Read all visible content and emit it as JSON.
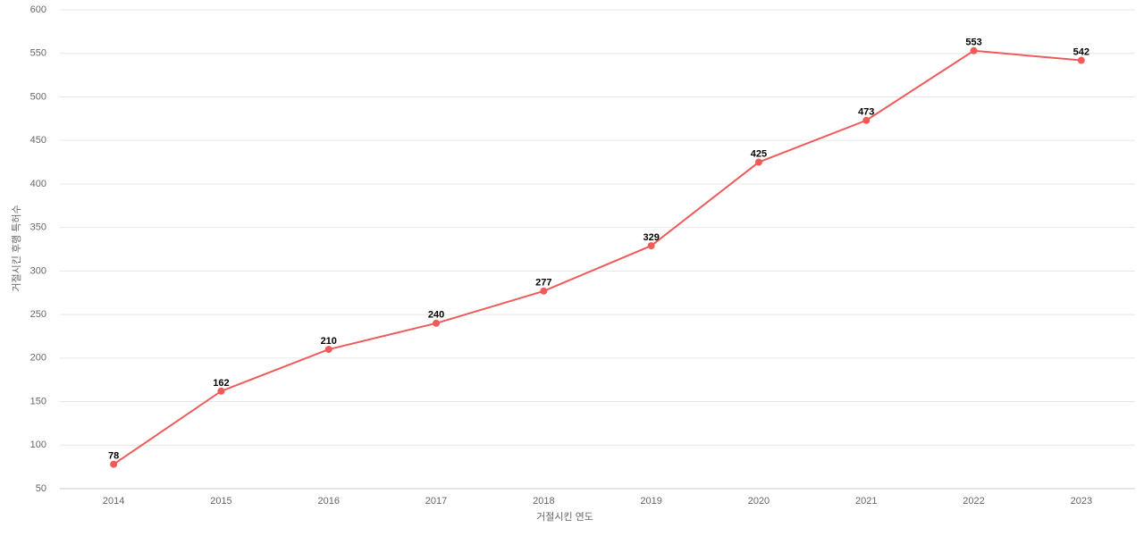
{
  "chart_data": {
    "type": "line",
    "x_label": "거절시킨 연도",
    "y_label": "거절시킨 후행 특허수",
    "categories": [
      "2014",
      "2015",
      "2016",
      "2017",
      "2018",
      "2019",
      "2020",
      "2021",
      "2022",
      "2023"
    ],
    "series": [
      {
        "color": "#ef5a5a",
        "values": [
          78,
          162,
          210,
          240,
          277,
          329,
          425,
          473,
          553,
          542
        ]
      }
    ],
    "ylim": [
      50,
      600
    ],
    "yticks": [
      50,
      100,
      150,
      200,
      250,
      300,
      350,
      400,
      450,
      500,
      550,
      600
    ],
    "grid": true
  }
}
